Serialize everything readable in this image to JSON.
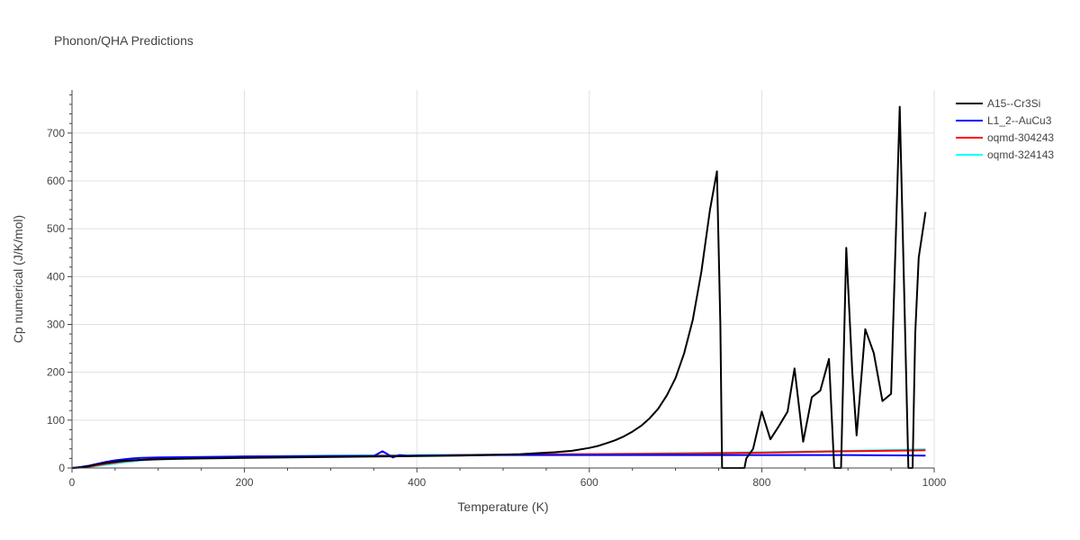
{
  "chart_data": {
    "type": "line",
    "title": "Phonon/QHA Predictions",
    "xlabel": "Temperature (K)",
    "ylabel": "Cp numerical (J/K/mol)",
    "xlim": [
      0,
      1000
    ],
    "ylim": [
      0,
      790
    ],
    "xticks": [
      0,
      200,
      400,
      600,
      800,
      1000
    ],
    "yticks": [
      0,
      100,
      200,
      300,
      400,
      500,
      600,
      700
    ],
    "grid": true,
    "legend": "top-right",
    "series": [
      {
        "name": "A15--Cr3Si",
        "color": "#000000",
        "points": [
          [
            0,
            0
          ],
          [
            10,
            1
          ],
          [
            20,
            4
          ],
          [
            30,
            8
          ],
          [
            40,
            11
          ],
          [
            50,
            13
          ],
          [
            60,
            15
          ],
          [
            70,
            16
          ],
          [
            80,
            17
          ],
          [
            100,
            18
          ],
          [
            120,
            19
          ],
          [
            150,
            20
          ],
          [
            200,
            21
          ],
          [
            250,
            22
          ],
          [
            300,
            23
          ],
          [
            350,
            24
          ],
          [
            400,
            25
          ],
          [
            450,
            26
          ],
          [
            500,
            28
          ],
          [
            520,
            29
          ],
          [
            540,
            31
          ],
          [
            560,
            33
          ],
          [
            580,
            36
          ],
          [
            600,
            42
          ],
          [
            610,
            46
          ],
          [
            620,
            52
          ],
          [
            630,
            58
          ],
          [
            640,
            66
          ],
          [
            650,
            76
          ],
          [
            660,
            88
          ],
          [
            670,
            104
          ],
          [
            680,
            124
          ],
          [
            690,
            152
          ],
          [
            700,
            188
          ],
          [
            710,
            240
          ],
          [
            720,
            310
          ],
          [
            730,
            410
          ],
          [
            740,
            540
          ],
          [
            748,
            620
          ],
          [
            752,
            300
          ],
          [
            754,
            0
          ],
          [
            780,
            0
          ],
          [
            782,
            20
          ],
          [
            790,
            40
          ],
          [
            800,
            118
          ],
          [
            810,
            60
          ],
          [
            820,
            88
          ],
          [
            830,
            118
          ],
          [
            838,
            208
          ],
          [
            848,
            55
          ],
          [
            858,
            148
          ],
          [
            868,
            162
          ],
          [
            878,
            228
          ],
          [
            884,
            0
          ],
          [
            892,
            0
          ],
          [
            898,
            460
          ],
          [
            905,
            200
          ],
          [
            910,
            68
          ],
          [
            920,
            290
          ],
          [
            930,
            240
          ],
          [
            940,
            140
          ],
          [
            950,
            155
          ],
          [
            960,
            755
          ],
          [
            965,
            380
          ],
          [
            970,
            0
          ],
          [
            975,
            0
          ],
          [
            978,
            280
          ],
          [
            982,
            440
          ],
          [
            990,
            535
          ]
        ]
      },
      {
        "name": "L1_2--AuCu3",
        "color": "#0000ff",
        "points": [
          [
            0,
            0
          ],
          [
            10,
            2
          ],
          [
            20,
            5
          ],
          [
            30,
            9
          ],
          [
            40,
            13
          ],
          [
            50,
            16
          ],
          [
            60,
            18
          ],
          [
            70,
            20
          ],
          [
            80,
            21
          ],
          [
            100,
            22
          ],
          [
            150,
            23
          ],
          [
            200,
            24
          ],
          [
            300,
            25
          ],
          [
            350,
            25
          ],
          [
            360,
            35
          ],
          [
            365,
            30
          ],
          [
            372,
            22
          ],
          [
            380,
            27
          ],
          [
            390,
            25
          ],
          [
            400,
            26
          ],
          [
            500,
            27
          ],
          [
            600,
            27
          ],
          [
            700,
            27
          ],
          [
            800,
            27
          ],
          [
            900,
            27
          ],
          [
            990,
            26
          ]
        ]
      },
      {
        "name": "oqmd-304243",
        "color": "#ff0000",
        "points": [
          [
            0,
            0
          ],
          [
            20,
            3
          ],
          [
            40,
            9
          ],
          [
            60,
            14
          ],
          [
            80,
            17
          ],
          [
            100,
            19
          ],
          [
            150,
            22
          ],
          [
            200,
            24
          ],
          [
            300,
            25
          ],
          [
            400,
            26
          ],
          [
            500,
            28
          ],
          [
            600,
            29
          ],
          [
            700,
            30
          ],
          [
            800,
            32
          ],
          [
            900,
            35
          ],
          [
            990,
            37
          ]
        ]
      },
      {
        "name": "oqmd-324143",
        "color": "#00ffff",
        "points": [
          [
            0,
            0
          ],
          [
            20,
            2
          ],
          [
            40,
            7
          ],
          [
            60,
            12
          ],
          [
            80,
            16
          ],
          [
            100,
            19
          ],
          [
            150,
            22
          ],
          [
            200,
            24
          ],
          [
            300,
            26
          ],
          [
            400,
            27
          ],
          [
            500,
            28
          ],
          [
            600,
            29
          ],
          [
            700,
            31
          ],
          [
            800,
            33
          ],
          [
            900,
            36
          ],
          [
            990,
            39
          ]
        ]
      }
    ]
  }
}
